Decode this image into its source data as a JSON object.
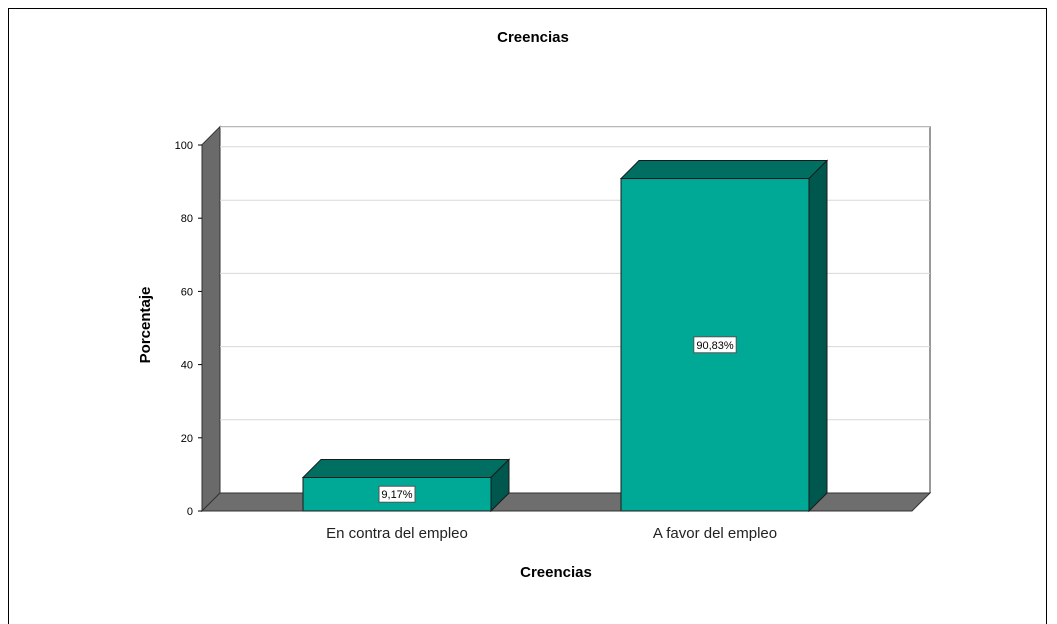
{
  "chart_data": {
    "type": "bar",
    "title": "Creencias",
    "xlabel": "Creencias",
    "ylabel": "Porcentaje",
    "categories": [
      "En contra del empleo",
      "A favor del empleo"
    ],
    "values": [
      9.17,
      90.83
    ],
    "data_labels": [
      "9,17%",
      "90,83%"
    ],
    "yticks": [
      0,
      20,
      40,
      60,
      80,
      100
    ],
    "ylim": [
      0,
      105
    ],
    "grid": true,
    "legend": "none",
    "style": "3d",
    "colors": {
      "bar_front": "#00a896",
      "bar_top": "#006e60",
      "bar_side": "#00574d",
      "floor": "#6e6e6e",
      "wall": "#6a6a6a",
      "grid": "#d8d8d8"
    }
  }
}
